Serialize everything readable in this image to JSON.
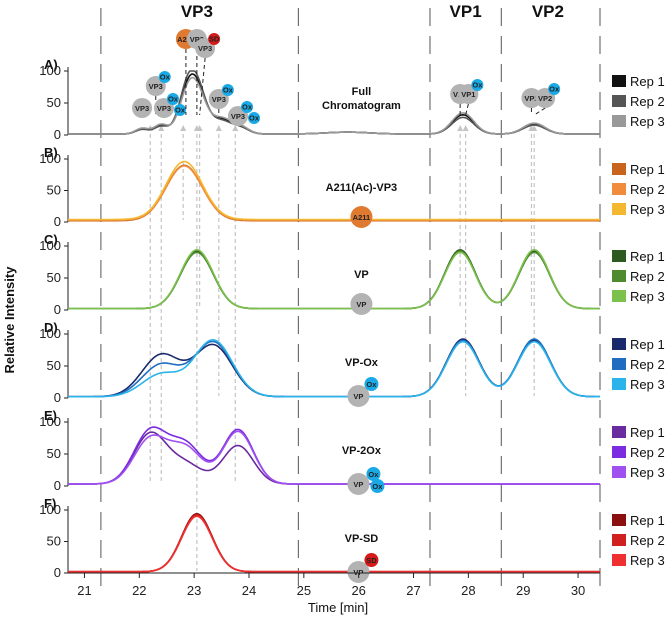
{
  "chart_data": {
    "type": "line",
    "title": "",
    "xlabel": "Time [min]",
    "ylabel": "Relative Intensity",
    "xlim": [
      20.7,
      30.4
    ],
    "ylim": [
      0,
      100
    ],
    "x_ticks": [
      "21",
      "22",
      "23",
      "24",
      "25",
      "26",
      "27",
      "28",
      "29",
      "30"
    ],
    "y_ticks": [
      "0",
      "50",
      "100"
    ],
    "regions": [
      {
        "label": "VP3",
        "from": 21.3,
        "to": 24.9
      },
      {
        "label": "VP1",
        "from": 27.3,
        "to": 28.6
      },
      {
        "label": "VP2",
        "from": 28.6,
        "to": 30.4
      }
    ],
    "dividers": [
      21.3,
      24.9,
      27.3,
      28.6,
      30.4
    ],
    "guide_lines": [
      {
        "x": 22.2,
        "from_panel": 0,
        "to_panel": 4
      },
      {
        "x": 22.4,
        "from_panel": 0,
        "to_panel": 4
      },
      {
        "x": 22.8,
        "from_panel": 0,
        "to_panel": 1
      },
      {
        "x": 23.05,
        "from_panel": 0,
        "to_panel": 5
      },
      {
        "x": 23.1,
        "from_panel": 0,
        "to_panel": 2
      },
      {
        "x": 23.45,
        "from_panel": 0,
        "to_panel": 3
      },
      {
        "x": 23.75,
        "from_panel": 0,
        "to_panel": 4
      },
      {
        "x": 27.85,
        "from_panel": 0,
        "to_panel": 2
      },
      {
        "x": 27.95,
        "from_panel": 0,
        "to_panel": 3
      },
      {
        "x": 29.15,
        "from_panel": 0,
        "to_panel": 2
      },
      {
        "x": 29.2,
        "from_panel": 0,
        "to_panel": 3
      }
    ],
    "panels": [
      {
        "label": "A)",
        "name": "Full Chromatogram",
        "name_lines": [
          "Full",
          "Chromatogram"
        ],
        "colors": [
          "#111111",
          "#555555",
          "#999999"
        ],
        "legend": [
          "Rep 1",
          "Rep 2",
          "Rep 3"
        ],
        "badges": [],
        "peaks": [
          {
            "mu": 22.05,
            "sigma": 0.12,
            "amps": [
              8,
              7,
              9
            ]
          },
          {
            "mu": 22.4,
            "sigma": 0.13,
            "amps": [
              14,
              12,
              15
            ]
          },
          {
            "mu": 22.85,
            "sigma": 0.15,
            "amps": [
              45,
              50,
              42
            ]
          },
          {
            "mu": 23.05,
            "sigma": 0.17,
            "amps": [
              68,
              72,
              64
            ]
          },
          {
            "mu": 23.5,
            "sigma": 0.18,
            "amps": [
              22,
              20,
              24
            ]
          },
          {
            "mu": 23.85,
            "sigma": 0.15,
            "amps": [
              10,
              9,
              11
            ]
          },
          {
            "mu": 25.8,
            "sigma": 0.4,
            "amps": [
              3,
              3,
              3
            ]
          },
          {
            "mu": 27.9,
            "sigma": 0.2,
            "amps": [
              30,
              26,
              33
            ]
          },
          {
            "mu": 29.2,
            "sigma": 0.2,
            "amps": [
              16,
              14,
              17
            ]
          }
        ],
        "baselines": [
          1.5,
          1.5,
          1.5
        ]
      },
      {
        "label": "B)",
        "name": "A211(Ac)-VP3",
        "name_lines": [
          "A211(Ac)-VP3"
        ],
        "colors": [
          "#c8641e",
          "#f08c3c",
          "#f4b830"
        ],
        "legend": [
          "Rep 1",
          "Rep 2",
          "Rep 3"
        ],
        "badges": [
          {
            "text": "A211",
            "fill": "#e07a30"
          }
        ],
        "peaks": [
          {
            "mu": 22.82,
            "sigma": 0.33,
            "amps": [
              88,
              86,
              92
            ]
          }
        ],
        "baselines": [
          2,
          3,
          4
        ]
      },
      {
        "label": "C)",
        "name": "VP",
        "name_lines": [
          "VP"
        ],
        "colors": [
          "#2f5a1f",
          "#4e8a2e",
          "#7cc04e"
        ],
        "legend": [
          "Rep 1",
          "Rep 2",
          "Rep 3"
        ],
        "badges": [
          {
            "text": "VP",
            "fill": "#b3b3b3"
          }
        ],
        "peaks": [
          {
            "mu": 23.05,
            "sigma": 0.3,
            "amps": [
              90,
              88,
              92
            ]
          },
          {
            "mu": 27.85,
            "sigma": 0.28,
            "amps": [
              92,
              90,
              88
            ]
          },
          {
            "mu": 29.2,
            "sigma": 0.28,
            "amps": [
              90,
              88,
              92
            ]
          }
        ],
        "baselines": [
          2,
          2,
          2
        ]
      },
      {
        "label": "D)",
        "name": "VP-Ox",
        "name_lines": [
          "VP-Ox"
        ],
        "colors": [
          "#1b2a6a",
          "#1f6cc0",
          "#2ab4ea"
        ],
        "legend": [
          "Rep 1",
          "Rep 2",
          "Rep 3"
        ],
        "badges": [
          {
            "text": "VP",
            "fill": "#b3b3b3"
          },
          {
            "text": "Ox",
            "fill": "#19a9e6"
          }
        ],
        "peaks": [
          {
            "mu": 22.4,
            "sigma": 0.35,
            "amps": [
              65,
              50,
              35
            ]
          },
          {
            "mu": 23.35,
            "sigma": 0.35,
            "amps": [
              80,
              85,
              88
            ]
          },
          {
            "mu": 27.9,
            "sigma": 0.3,
            "amps": [
              90,
              88,
              86
            ]
          },
          {
            "mu": 29.2,
            "sigma": 0.3,
            "amps": [
              88,
              90,
              86
            ]
          }
        ],
        "baselines": [
          2,
          2,
          2
        ]
      },
      {
        "label": "E)",
        "name": "VP-2Ox",
        "name_lines": [
          "VP-2Ox"
        ],
        "colors": [
          "#6a2aa0",
          "#7c2ce0",
          "#a050f0"
        ],
        "legend": [
          "Rep 1",
          "Rep 2",
          "Rep 3"
        ],
        "badges": [
          {
            "text": "VP",
            "fill": "#b3b3b3"
          },
          {
            "text": "Ox",
            "fill": "#19a9e6"
          },
          {
            "text": "Ox",
            "fill": "#19a9e6"
          }
        ],
        "peaks": [
          {
            "mu": 22.2,
            "sigma": 0.3,
            "amps": [
              78,
              82,
              70
            ]
          },
          {
            "mu": 22.85,
            "sigma": 0.3,
            "amps": [
              30,
              60,
              55
            ]
          },
          {
            "mu": 23.8,
            "sigma": 0.28,
            "amps": [
              60,
              85,
              82
            ]
          }
        ],
        "baselines": [
          3,
          3,
          3
        ]
      },
      {
        "label": "F)",
        "name": "VP-SD",
        "name_lines": [
          "VP-SD"
        ],
        "colors": [
          "#8a1010",
          "#d02020",
          "#f03030"
        ],
        "legend": [
          "Rep 1",
          "Rep 2",
          "Rep 3"
        ],
        "badges": [
          {
            "text": "VP",
            "fill": "#b3b3b3"
          },
          {
            "text": "SD",
            "fill": "#d51a1a"
          }
        ],
        "peaks": [
          {
            "mu": 23.05,
            "sigma": 0.28,
            "amps": [
              92,
              90,
              88
            ]
          }
        ],
        "baselines": [
          2,
          2,
          2
        ]
      }
    ],
    "annotations_panel_A": [
      {
        "x": 22.05,
        "label": "VP3",
        "ox": []
      },
      {
        "x": 22.3,
        "label": "VP3",
        "ox": [
          "Ox"
        ]
      },
      {
        "x": 22.45,
        "label": "VP3",
        "ox": [
          "Ox",
          "Ox"
        ]
      },
      {
        "x": 22.85,
        "label": "A211",
        "ox": []
      },
      {
        "x": 23.05,
        "label": "VP3",
        "ox": []
      },
      {
        "x": 23.1,
        "label": "VP3",
        "ox": [
          "SD"
        ]
      },
      {
        "x": 23.45,
        "label": "VP3",
        "ox": [
          "Ox"
        ]
      },
      {
        "x": 23.8,
        "label": "VP3",
        "ox": [
          "Ox",
          "Ox"
        ]
      },
      {
        "x": 27.85,
        "label": "VP1",
        "ox": []
      },
      {
        "x": 27.95,
        "label": "VP1",
        "ox": [
          "Ox"
        ]
      },
      {
        "x": 29.15,
        "label": "VP2",
        "ox": []
      },
      {
        "x": 29.2,
        "label": "VP2",
        "ox": [
          "Ox"
        ]
      }
    ]
  }
}
